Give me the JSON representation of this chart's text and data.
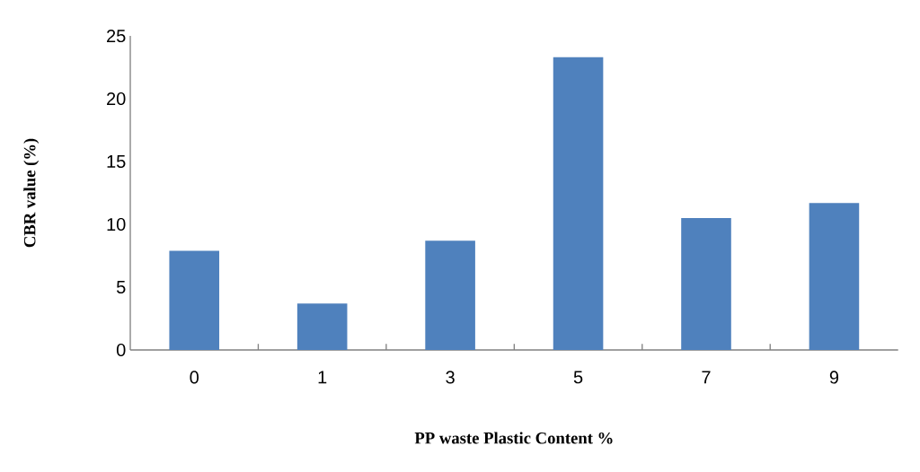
{
  "chart_data": {
    "type": "bar",
    "xlabel": "PP waste Plastic Content %",
    "ylabel": "CBR value (%)",
    "categories": [
      "0",
      "1",
      "3",
      "5",
      "7",
      "9"
    ],
    "values": [
      7.9,
      3.7,
      8.7,
      23.3,
      10.5,
      11.7
    ],
    "color": "#4f81bd",
    "ylim": [
      0,
      25
    ],
    "yticks": [
      0,
      5,
      10,
      15,
      20,
      25
    ],
    "grid": false
  }
}
